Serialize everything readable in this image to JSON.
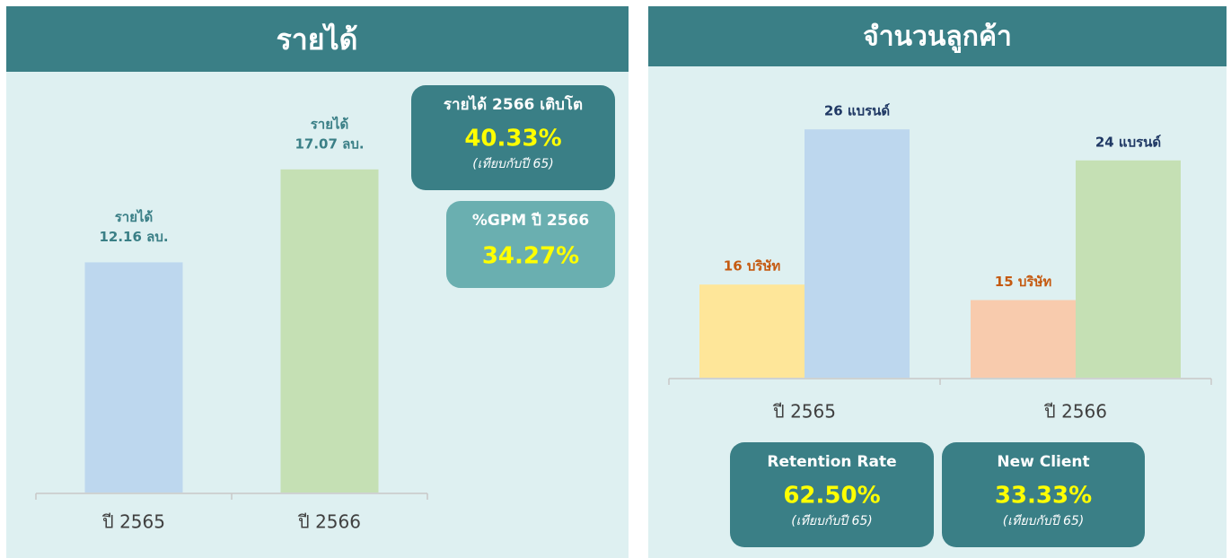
{
  "chart_data": [
    {
      "type": "bar",
      "title": "รายได้",
      "categories": [
        "ปี 2565",
        "ปี 2566"
      ],
      "series": [
        {
          "name": "รายได้",
          "colors": [
            "#bdd7ee",
            "#c5e0b4"
          ],
          "values": [
            12.16,
            17.07
          ],
          "value_labels": [
            "12.16 ลบ.",
            "17.07 ลบ."
          ],
          "label_color": "#3a7f86"
        }
      ],
      "ylim": [
        0,
        20
      ],
      "cards": [
        {
          "title": "รายได้ 2566 เติบโต",
          "value": "40.33%",
          "note": "(เทียบกับปี 65)"
        },
        {
          "title": "%GPM ปี 2566",
          "value": "34.27%"
        }
      ]
    },
    {
      "type": "bar",
      "title": "จำนวนลูกค้า",
      "categories": [
        "ปี 2565",
        "ปี 2566"
      ],
      "series": [
        {
          "colors": [
            "#fee699",
            "#f8cbad"
          ],
          "values": [
            16,
            15
          ],
          "value_labels": [
            "16 บริษัท",
            "15 บริษัท"
          ],
          "label_color": "#c55a11"
        },
        {
          "colors": [
            "#bdd7ee",
            "#c5e0b4"
          ],
          "values": [
            26,
            24
          ],
          "value_labels": [
            "26 แบรนด์",
            "24 แบรนด์"
          ],
          "label_color": "#1f3864"
        }
      ],
      "ylim": [
        10,
        30
      ],
      "cards": [
        {
          "title": "Retention Rate",
          "value": "62.50%",
          "note": "(เทียบกับปี 65)"
        },
        {
          "title": "New Client",
          "value": "33.33%",
          "note": "(เทียบกับปี 65)"
        }
      ]
    }
  ]
}
